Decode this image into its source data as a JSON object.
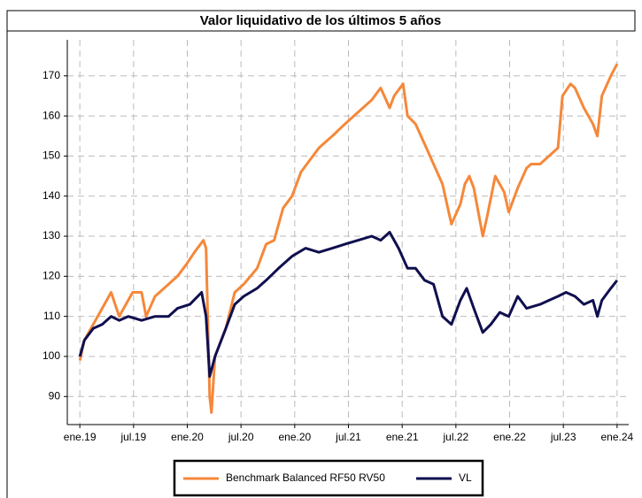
{
  "chart_data": {
    "type": "line",
    "title": "Valor liquidativo de los últimos 5 años",
    "xlim": [
      -1.4,
      61.3
    ],
    "xticks": [
      {
        "value": 0,
        "label": "ene.19"
      },
      {
        "value": 6,
        "label": "jul.19"
      },
      {
        "value": 12,
        "label": "ene.20"
      },
      {
        "value": 18,
        "label": "jul.20"
      },
      {
        "value": 24,
        "label": "ene.20"
      },
      {
        "value": 30,
        "label": "jul.21"
      },
      {
        "value": 36,
        "label": "ene.21"
      },
      {
        "value": 42,
        "label": "jul.22"
      },
      {
        "value": 48,
        "label": "ene.22"
      },
      {
        "value": 54,
        "label": "jul.23"
      },
      {
        "value": 60,
        "label": "ene.24"
      }
    ],
    "ylim": [
      83,
      179
    ],
    "yticks": [
      90,
      100,
      110,
      120,
      130,
      140,
      150,
      160,
      170
    ],
    "grid": true,
    "legend": "bottom",
    "series": [
      {
        "name": "Benchmark Balanced RF50 RV50",
        "color": "#f5883a",
        "x": [
          0,
          0.5,
          1.5,
          2.5,
          3.5,
          4.4,
          5.9,
          6.9,
          7.4,
          8.4,
          9.9,
          10.9,
          11.9,
          12.8,
          13.8,
          14.1,
          14.5,
          14.7,
          15.1,
          16.3,
          17.3,
          18.3,
          19.8,
          20.8,
          21.7,
          22.7,
          23.7,
          24.7,
          25.7,
          26.7,
          28.2,
          29.6,
          31.1,
          32.6,
          33.6,
          34.6,
          35.1,
          36.1,
          36.6,
          37.5,
          38.5,
          39.5,
          40.5,
          41.5,
          42.5,
          43.0,
          43.5,
          44.0,
          45.0,
          45.5,
          46.4,
          47.4,
          47.9,
          48.9,
          49.9,
          50.4,
          51.4,
          52.4,
          53.4,
          53.9,
          54.8,
          55.3,
          56.3,
          57.3,
          57.8,
          58.3,
          59.3,
          60
        ],
        "values": [
          99,
          104,
          108,
          112,
          116,
          110,
          116,
          116,
          110,
          115,
          118,
          120,
          123,
          126,
          129,
          127,
          90,
          86,
          100,
          107,
          116,
          118,
          122,
          128,
          129,
          137,
          140,
          146,
          149,
          152,
          155,
          158,
          161,
          164,
          167,
          162,
          165,
          168,
          160,
          158,
          153,
          148,
          143,
          133,
          138,
          143,
          145,
          142,
          130,
          135,
          145,
          141,
          136,
          142,
          147,
          148,
          148,
          150,
          152,
          165,
          168,
          167,
          162,
          158,
          155,
          165,
          170,
          173
        ]
      },
      {
        "name": "VL",
        "color": "#0f0f4f",
        "x": [
          0,
          0.5,
          1.5,
          2.5,
          3.5,
          4.4,
          5.4,
          6.9,
          8.4,
          9.9,
          10.9,
          12.3,
          13.6,
          14.1,
          14.5,
          15.1,
          16.3,
          17.3,
          18.3,
          19.8,
          20.8,
          22.2,
          23.7,
          25.2,
          26.7,
          28.2,
          29.6,
          31.1,
          32.6,
          33.6,
          34.6,
          35.6,
          36.6,
          37.5,
          38.5,
          39.5,
          40.5,
          41.5,
          42.5,
          43.2,
          44.0,
          45.0,
          45.9,
          46.9,
          47.9,
          48.9,
          49.9,
          51.4,
          52.4,
          53.4,
          54.3,
          55.3,
          56.3,
          57.3,
          57.8,
          58.3,
          59.3,
          60
        ],
        "values": [
          100,
          104,
          107,
          108,
          110,
          109,
          110,
          109,
          110,
          110,
          112,
          113,
          116,
          110,
          95,
          100,
          107,
          113,
          115,
          117,
          119,
          122,
          125,
          127,
          126,
          127,
          128,
          129,
          130,
          129,
          131,
          127,
          122,
          122,
          119,
          118,
          110,
          108,
          114,
          117,
          112,
          106,
          108,
          111,
          110,
          115,
          112,
          113,
          114,
          115,
          116,
          115,
          113,
          114,
          110,
          114,
          117,
          119
        ]
      }
    ]
  }
}
